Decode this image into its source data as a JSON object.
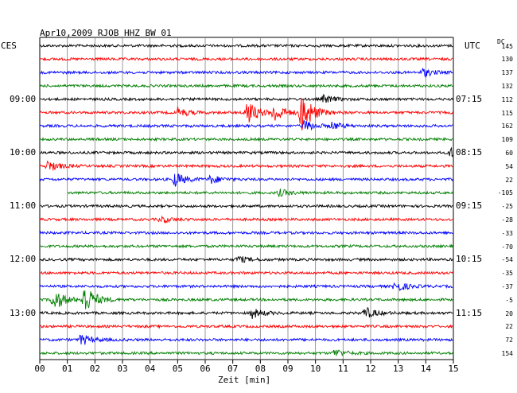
{
  "chart_data": {
    "type": "line",
    "title": "Apr10,2009  RJOB HHZ BW 01",
    "left_label": "CES",
    "right_label": "UTC",
    "dc_label": "DC",
    "xlabel": "Zeit [min]",
    "x_ticks": [
      "00",
      "01",
      "02",
      "03",
      "04",
      "05",
      "06",
      "07",
      "08",
      "09",
      "10",
      "11",
      "12",
      "13",
      "14",
      "15"
    ],
    "xlim": [
      0,
      15
    ],
    "grid": true,
    "trace_colors": [
      "#000000",
      "#ff0000",
      "#0000ff",
      "#007f00"
    ],
    "left_time_labels": [
      {
        "row": 4,
        "text": "09:00"
      },
      {
        "row": 8,
        "text": "10:00"
      },
      {
        "row": 12,
        "text": "11:00"
      },
      {
        "row": 16,
        "text": "12:00"
      },
      {
        "row": 20,
        "text": "13:00"
      }
    ],
    "right_time_labels": [
      {
        "row": 4,
        "text": "07:15"
      },
      {
        "row": 8,
        "text": "08:15"
      },
      {
        "row": 12,
        "text": "09:15"
      },
      {
        "row": 16,
        "text": "10:15"
      },
      {
        "row": 20,
        "text": "11:15"
      }
    ],
    "dc_values": [
      "145",
      "130",
      "137",
      "132",
      "112",
      "115",
      "162",
      "109",
      "60",
      "54",
      "22",
      "-105",
      "-25",
      "-28",
      "-33",
      "-70",
      "-54",
      "-35",
      "-37",
      "-5",
      "20",
      "22",
      "72",
      "154"
    ],
    "bursts": [
      {
        "row": 2,
        "at": 13.9,
        "amp": 5
      },
      {
        "row": 4,
        "at": 10.3,
        "amp": 5
      },
      {
        "row": 5,
        "at": 5.0,
        "amp": 6
      },
      {
        "row": 5,
        "at": 7.5,
        "amp": 16
      },
      {
        "row": 5,
        "at": 8.5,
        "amp": 12
      },
      {
        "row": 5,
        "at": 9.5,
        "amp": 26
      },
      {
        "row": 6,
        "at": 9.6,
        "amp": 7
      },
      {
        "row": 6,
        "at": 10.6,
        "amp": 4
      },
      {
        "row": 8,
        "at": 14.9,
        "amp": 6
      },
      {
        "row": 9,
        "at": 0.3,
        "amp": 7
      },
      {
        "row": 10,
        "at": 4.9,
        "amp": 9
      },
      {
        "row": 10,
        "at": 6.2,
        "amp": 5
      },
      {
        "row": 11,
        "at": 8.7,
        "amp": 4
      },
      {
        "row": 13,
        "at": 4.4,
        "amp": 4
      },
      {
        "row": 16,
        "at": 7.2,
        "amp": 4
      },
      {
        "row": 18,
        "at": 12.9,
        "amp": 7
      },
      {
        "row": 19,
        "at": 0.5,
        "amp": 14
      },
      {
        "row": 19,
        "at": 1.6,
        "amp": 20
      },
      {
        "row": 20,
        "at": 7.7,
        "amp": 6
      },
      {
        "row": 20,
        "at": 11.8,
        "amp": 7
      },
      {
        "row": 22,
        "at": 1.5,
        "amp": 7
      },
      {
        "row": 23,
        "at": 10.7,
        "amp": 5
      }
    ],
    "gaps": [
      {
        "row": 11,
        "from": 0.0,
        "to": 1.0
      }
    ]
  }
}
